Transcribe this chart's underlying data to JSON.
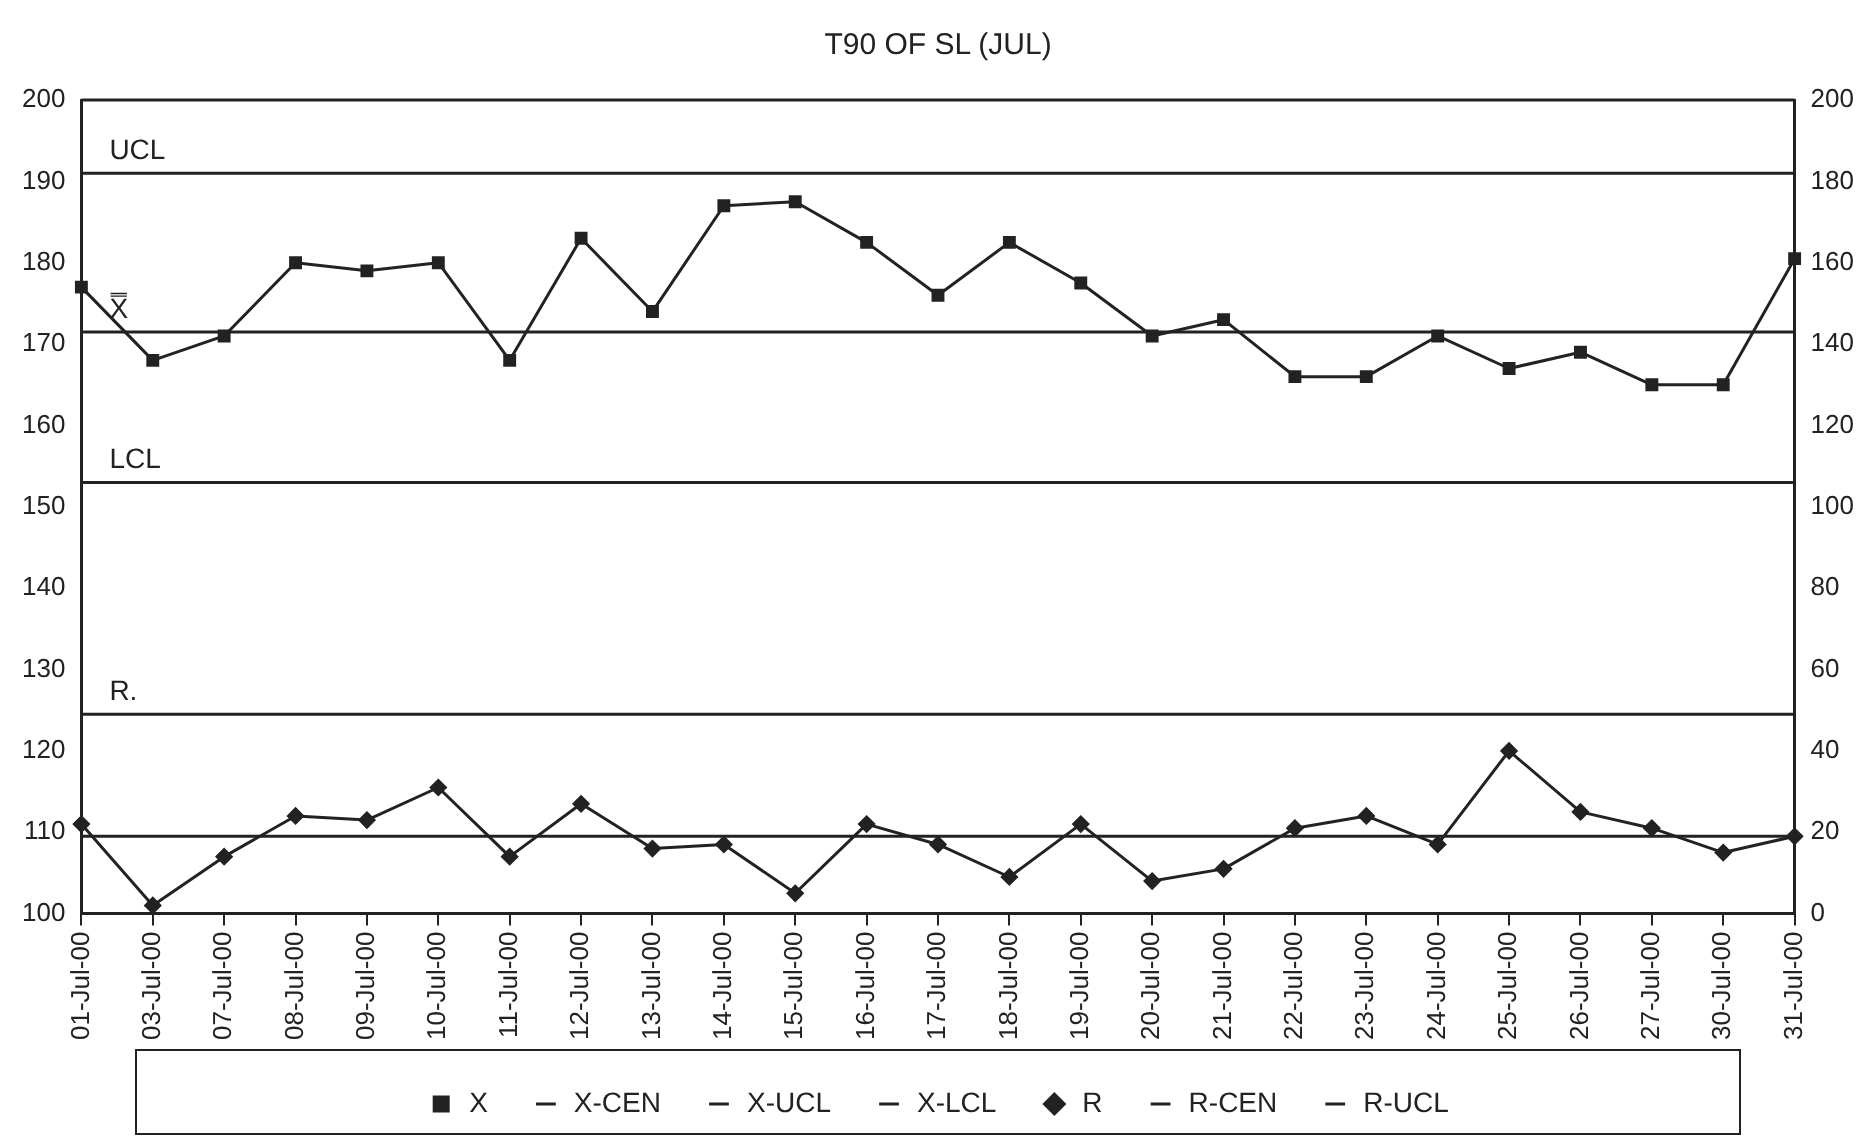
{
  "chart_data": {
    "type": "line",
    "title": "T90 OF SL (JUL)",
    "categories": [
      "01-Jul-00",
      "03-Jul-00",
      "07-Jul-00",
      "08-Jul-00",
      "09-Jul-00",
      "10-Jul-00",
      "11-Jul-00",
      "12-Jul-00",
      "13-Jul-00",
      "14-Jul-00",
      "15-Jul-00",
      "16-Jul-00",
      "17-Jul-00",
      "18-Jul-00",
      "19-Jul-00",
      "20-Jul-00",
      "21-Jul-00",
      "22-Jul-00",
      "23-Jul-00",
      "24-Jul-00",
      "25-Jul-00",
      "26-Jul-00",
      "27-Jul-00",
      "30-Jul-00",
      "31-Jul-00"
    ],
    "series": [
      {
        "name": "X",
        "color": "#222222",
        "marker": "square",
        "values": [
          177,
          168,
          171,
          180,
          179,
          180,
          168,
          183,
          174,
          187,
          187.5,
          182.5,
          176,
          182.5,
          177.5,
          171,
          173,
          166,
          166,
          171,
          167,
          169,
          165,
          165,
          180.5
        ]
      },
      {
        "name": "X-CEN",
        "color": "#222222",
        "marker": "none",
        "values": [
          171.5,
          171.5,
          171.5,
          171.5,
          171.5,
          171.5,
          171.5,
          171.5,
          171.5,
          171.5,
          171.5,
          171.5,
          171.5,
          171.5,
          171.5,
          171.5,
          171.5,
          171.5,
          171.5,
          171.5,
          171.5,
          171.5,
          171.5,
          171.5,
          171.5
        ]
      },
      {
        "name": "X-UCL",
        "color": "#222222",
        "marker": "none",
        "values": [
          191,
          191,
          191,
          191,
          191,
          191,
          191,
          191,
          191,
          191,
          191,
          191,
          191,
          191,
          191,
          191,
          191,
          191,
          191,
          191,
          191,
          191,
          191,
          191,
          191
        ]
      },
      {
        "name": "X-LCL",
        "color": "#222222",
        "marker": "none",
        "values": [
          153,
          153,
          153,
          153,
          153,
          153,
          153,
          153,
          153,
          153,
          153,
          153,
          153,
          153,
          153,
          153,
          153,
          153,
          153,
          153,
          153,
          153,
          153,
          153,
          153
        ]
      },
      {
        "name": "R",
        "color": "#222222",
        "marker": "diamond",
        "axis": "y2",
        "values": [
          22,
          2,
          14,
          24,
          23,
          31,
          14,
          27,
          16,
          17,
          5,
          22,
          17,
          9,
          22,
          8,
          11,
          21,
          24,
          17,
          40,
          25,
          21,
          15,
          19
        ]
      },
      {
        "name": "R-CEN",
        "color": "#222222",
        "marker": "none",
        "axis": "y2",
        "values": [
          19,
          19,
          19,
          19,
          19,
          19,
          19,
          19,
          19,
          19,
          19,
          19,
          19,
          19,
          19,
          19,
          19,
          19,
          19,
          19,
          19,
          19,
          19,
          19,
          19
        ]
      },
      {
        "name": "R-UCL",
        "color": "#222222",
        "marker": "none",
        "axis": "y2",
        "values": [
          49,
          49,
          49,
          49,
          49,
          49,
          49,
          49,
          49,
          49,
          49,
          49,
          49,
          49,
          49,
          49,
          49,
          49,
          49,
          49,
          49,
          49,
          49,
          49,
          49
        ]
      }
    ],
    "ylim": [
      100,
      200
    ],
    "yticks": [
      100,
      110,
      120,
      130,
      140,
      150,
      160,
      170,
      180,
      190,
      200
    ],
    "y2lim": [
      0,
      200
    ],
    "y2ticks": [
      0,
      20,
      40,
      60,
      80,
      100,
      120,
      140,
      160,
      180,
      200
    ],
    "annotations": [
      {
        "text": "UCL",
        "y": 191
      },
      {
        "text": "X̿",
        "y": 171.5
      },
      {
        "text": "LCL",
        "y": 153
      },
      {
        "text": "R.",
        "y": 124.5
      }
    ],
    "grid": false,
    "legend": "bottom",
    "line_style": "solid"
  }
}
